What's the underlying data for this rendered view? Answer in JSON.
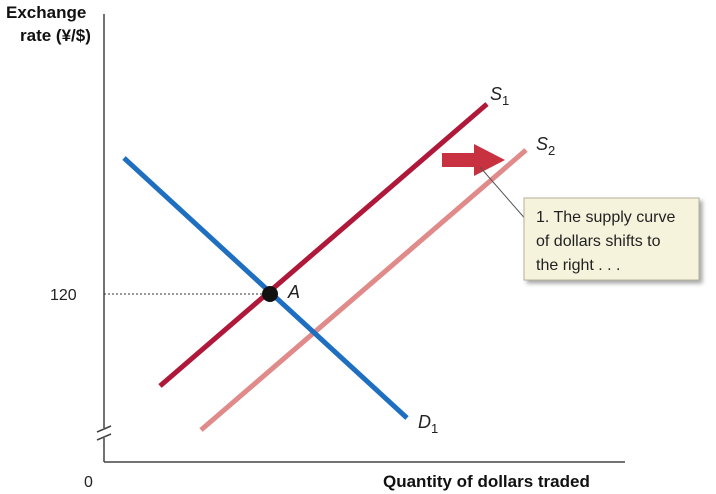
{
  "diagram": {
    "y_axis_title_line1": "Exchange",
    "y_axis_title_line2": "rate (¥/$)",
    "x_axis_title": "Quantity of dollars traded",
    "origin_label": "0",
    "y_tick_label": "120",
    "point_label": "A",
    "supply1": {
      "letter": "S",
      "subscript": "1"
    },
    "supply2": {
      "letter": "S",
      "subscript": "2"
    },
    "demand1": {
      "letter": "D",
      "subscript": "1"
    },
    "annotation": {
      "line1": "1. The supply curve",
      "line2": "of dollars shifts to",
      "line3": "the right . . ."
    },
    "colors": {
      "supply1": "#b0183a",
      "supply2": "#e08a8a",
      "demand": "#1f6fc0",
      "shift_arrow": "#c8313f",
      "annotation_bg": "#f6f3dc",
      "point": "#111111"
    }
  }
}
